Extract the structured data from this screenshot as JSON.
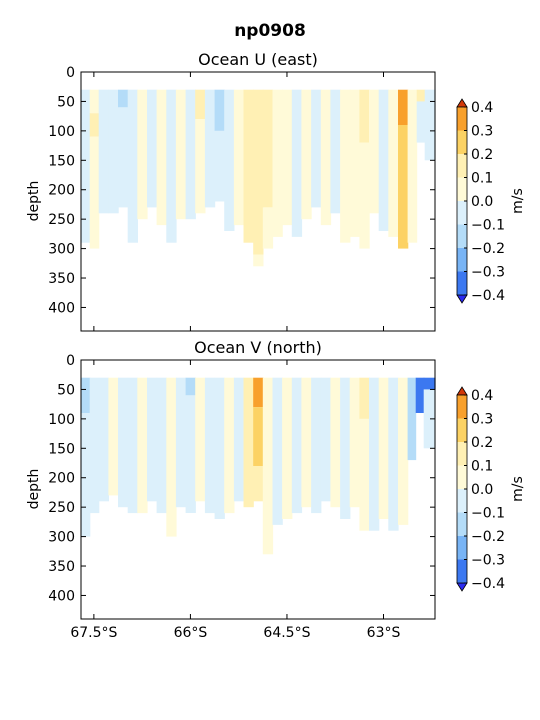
{
  "suptitle": "np0908",
  "colorbar": {
    "label": "m/s",
    "levels": [
      -0.4,
      -0.3,
      -0.2,
      -0.1,
      0.0,
      0.1,
      0.2,
      0.3,
      0.4
    ],
    "tick_labels": [
      "−0.4",
      "−0.3",
      "−0.2",
      "−0.1",
      "0.0",
      "0.1",
      "0.2",
      "0.3",
      "0.4"
    ],
    "colors": [
      "#2a2af0",
      "#3c78f0",
      "#78b4f5",
      "#b4dcf8",
      "#dcf0fb",
      "#fffad8",
      "#fff0b4",
      "#fcd264",
      "#f8a02c",
      "#ee5a1a",
      "#d23808"
    ]
  },
  "axes": {
    "ylabel": "depth",
    "y_ticks": [
      "0",
      "50",
      "100",
      "150",
      "200",
      "250",
      "300",
      "350",
      "400"
    ],
    "x_ticks": [
      "67.5°S",
      "66°S",
      "64.5°S",
      "63°S"
    ]
  },
  "chart_data": [
    {
      "type": "heatmap",
      "title": "Ocean U (east)",
      "ylabel": "depth",
      "xlabel": "",
      "x_range_deg_south": [
        67.7,
        62.2
      ],
      "y_range_depth": [
        0,
        440
      ],
      "y_inverted": true,
      "colorbar_label": "m/s",
      "value_range": [
        -0.4,
        0.4
      ],
      "profile_columns": [
        {
          "lat_s": 67.63,
          "top": 30,
          "bottom": 290,
          "segments": [
            [
              30,
              290,
              -0.05
            ]
          ]
        },
        {
          "lat_s": 67.5,
          "top": 30,
          "bottom": 300,
          "segments": [
            [
              30,
              70,
              0.05
            ],
            [
              70,
              110,
              0.15
            ],
            [
              110,
              300,
              0.05
            ]
          ]
        },
        {
          "lat_s": 67.35,
          "top": 30,
          "bottom": 240,
          "segments": [
            [
              30,
              240,
              -0.05
            ]
          ]
        },
        {
          "lat_s": 67.2,
          "top": 30,
          "bottom": 240,
          "segments": [
            [
              30,
              240,
              -0.05
            ]
          ]
        },
        {
          "lat_s": 67.05,
          "top": 30,
          "bottom": 230,
          "segments": [
            [
              30,
              60,
              -0.15
            ],
            [
              60,
              230,
              -0.05
            ]
          ]
        },
        {
          "lat_s": 66.9,
          "top": 30,
          "bottom": 290,
          "segments": [
            [
              30,
              290,
              -0.05
            ]
          ]
        },
        {
          "lat_s": 66.75,
          "top": 30,
          "bottom": 250,
          "segments": [
            [
              30,
              250,
              0.05
            ]
          ]
        },
        {
          "lat_s": 66.6,
          "top": 30,
          "bottom": 230,
          "segments": [
            [
              30,
              230,
              -0.05
            ]
          ]
        },
        {
          "lat_s": 66.45,
          "top": 30,
          "bottom": 260,
          "segments": [
            [
              30,
              260,
              0.05
            ]
          ]
        },
        {
          "lat_s": 66.3,
          "top": 30,
          "bottom": 290,
          "segments": [
            [
              30,
              290,
              -0.05
            ]
          ]
        },
        {
          "lat_s": 66.15,
          "top": 30,
          "bottom": 250,
          "segments": [
            [
              30,
              250,
              0.05
            ]
          ]
        },
        {
          "lat_s": 66.0,
          "top": 30,
          "bottom": 250,
          "segments": [
            [
              30,
              250,
              -0.05
            ]
          ]
        },
        {
          "lat_s": 65.85,
          "top": 30,
          "bottom": 240,
          "segments": [
            [
              30,
              80,
              0.15
            ],
            [
              80,
              240,
              0.05
            ]
          ]
        },
        {
          "lat_s": 65.7,
          "top": 30,
          "bottom": 230,
          "segments": [
            [
              30,
              230,
              -0.05
            ]
          ]
        },
        {
          "lat_s": 65.55,
          "top": 30,
          "bottom": 220,
          "segments": [
            [
              30,
              100,
              -0.15
            ],
            [
              100,
              220,
              -0.05
            ]
          ]
        },
        {
          "lat_s": 65.4,
          "top": 30,
          "bottom": 270,
          "segments": [
            [
              30,
              270,
              -0.05
            ]
          ]
        },
        {
          "lat_s": 65.25,
          "top": 30,
          "bottom": 260,
          "segments": [
            [
              30,
              260,
              0.05
            ]
          ]
        },
        {
          "lat_s": 65.1,
          "top": 30,
          "bottom": 290,
          "segments": [
            [
              30,
              290,
              0.15
            ]
          ]
        },
        {
          "lat_s": 64.95,
          "top": 30,
          "bottom": 330,
          "segments": [
            [
              30,
              310,
              0.15
            ],
            [
              310,
              330,
              0.05
            ]
          ]
        },
        {
          "lat_s": 64.8,
          "top": 30,
          "bottom": 300,
          "segments": [
            [
              30,
              230,
              0.15
            ],
            [
              230,
              300,
              0.05
            ]
          ]
        },
        {
          "lat_s": 64.65,
          "top": 30,
          "bottom": 280,
          "segments": [
            [
              30,
              280,
              0.05
            ]
          ]
        },
        {
          "lat_s": 64.5,
          "top": 30,
          "bottom": 260,
          "segments": [
            [
              30,
              260,
              0.05
            ]
          ]
        },
        {
          "lat_s": 64.35,
          "top": 30,
          "bottom": 280,
          "segments": [
            [
              30,
              280,
              -0.05
            ]
          ]
        },
        {
          "lat_s": 64.2,
          "top": 30,
          "bottom": 250,
          "segments": [
            [
              30,
              250,
              0.05
            ]
          ]
        },
        {
          "lat_s": 64.05,
          "top": 30,
          "bottom": 230,
          "segments": [
            [
              30,
              230,
              -0.05
            ]
          ]
        },
        {
          "lat_s": 63.9,
          "top": 30,
          "bottom": 260,
          "segments": [
            [
              30,
              260,
              0.05
            ]
          ]
        },
        {
          "lat_s": 63.75,
          "top": 30,
          "bottom": 240,
          "segments": [
            [
              30,
              240,
              -0.05
            ]
          ]
        },
        {
          "lat_s": 63.6,
          "top": 30,
          "bottom": 290,
          "segments": [
            [
              30,
              290,
              0.05
            ]
          ]
        },
        {
          "lat_s": 63.45,
          "top": 30,
          "bottom": 280,
          "segments": [
            [
              30,
              280,
              0.05
            ]
          ]
        },
        {
          "lat_s": 63.3,
          "top": 30,
          "bottom": 300,
          "segments": [
            [
              30,
              120,
              0.15
            ],
            [
              120,
              300,
              0.05
            ]
          ]
        },
        {
          "lat_s": 63.15,
          "top": 30,
          "bottom": 240,
          "segments": [
            [
              30,
              240,
              0.05
            ]
          ]
        },
        {
          "lat_s": 63.0,
          "top": 30,
          "bottom": 270,
          "segments": [
            [
              30,
              270,
              -0.05
            ]
          ]
        },
        {
          "lat_s": 62.85,
          "top": 30,
          "bottom": 280,
          "segments": [
            [
              30,
              280,
              0.05
            ]
          ]
        },
        {
          "lat_s": 62.7,
          "top": 30,
          "bottom": 300,
          "segments": [
            [
              30,
              90,
              0.35
            ],
            [
              90,
              300,
              0.25
            ]
          ]
        },
        {
          "lat_s": 62.55,
          "top": 30,
          "bottom": 290,
          "segments": [
            [
              30,
              290,
              0.05
            ]
          ]
        },
        {
          "lat_s": 62.42,
          "top": 30,
          "bottom": 120,
          "segments": [
            [
              30,
              50,
              0.15
            ],
            [
              50,
              120,
              -0.05
            ]
          ]
        },
        {
          "lat_s": 62.3,
          "top": 30,
          "bottom": 150,
          "segments": [
            [
              30,
              150,
              -0.05
            ]
          ]
        }
      ]
    },
    {
      "type": "heatmap",
      "title": "Ocean V (north)",
      "ylabel": "depth",
      "xlabel": "",
      "x_range_deg_south": [
        67.7,
        62.2
      ],
      "y_range_depth": [
        0,
        440
      ],
      "y_inverted": true,
      "colorbar_label": "m/s",
      "value_range": [
        -0.4,
        0.4
      ],
      "profile_columns": [
        {
          "lat_s": 67.63,
          "top": 30,
          "bottom": 300,
          "segments": [
            [
              30,
              90,
              -0.15
            ],
            [
              90,
              300,
              -0.05
            ]
          ]
        },
        {
          "lat_s": 67.5,
          "top": 30,
          "bottom": 260,
          "segments": [
            [
              30,
              260,
              -0.05
            ]
          ]
        },
        {
          "lat_s": 67.35,
          "top": 30,
          "bottom": 240,
          "segments": [
            [
              30,
              240,
              -0.05
            ]
          ]
        },
        {
          "lat_s": 67.2,
          "top": 30,
          "bottom": 230,
          "segments": [
            [
              30,
              230,
              0.05
            ]
          ]
        },
        {
          "lat_s": 67.05,
          "top": 30,
          "bottom": 250,
          "segments": [
            [
              30,
              250,
              -0.05
            ]
          ]
        },
        {
          "lat_s": 66.9,
          "top": 30,
          "bottom": 260,
          "segments": [
            [
              30,
              260,
              -0.05
            ]
          ]
        },
        {
          "lat_s": 66.75,
          "top": 30,
          "bottom": 260,
          "segments": [
            [
              30,
              260,
              0.05
            ]
          ]
        },
        {
          "lat_s": 66.6,
          "top": 30,
          "bottom": 240,
          "segments": [
            [
              30,
              240,
              -0.05
            ]
          ]
        },
        {
          "lat_s": 66.45,
          "top": 30,
          "bottom": 260,
          "segments": [
            [
              30,
              260,
              -0.05
            ]
          ]
        },
        {
          "lat_s": 66.3,
          "top": 30,
          "bottom": 300,
          "segments": [
            [
              30,
              300,
              0.05
            ]
          ]
        },
        {
          "lat_s": 66.15,
          "top": 30,
          "bottom": 250,
          "segments": [
            [
              30,
              250,
              -0.05
            ]
          ]
        },
        {
          "lat_s": 66.0,
          "top": 30,
          "bottom": 260,
          "segments": [
            [
              30,
              60,
              -0.15
            ],
            [
              60,
              260,
              -0.05
            ]
          ]
        },
        {
          "lat_s": 65.85,
          "top": 30,
          "bottom": 240,
          "segments": [
            [
              30,
              240,
              0.05
            ]
          ]
        },
        {
          "lat_s": 65.7,
          "top": 30,
          "bottom": 260,
          "segments": [
            [
              30,
              260,
              -0.05
            ]
          ]
        },
        {
          "lat_s": 65.55,
          "top": 30,
          "bottom": 270,
          "segments": [
            [
              30,
              270,
              -0.05
            ]
          ]
        },
        {
          "lat_s": 65.4,
          "top": 30,
          "bottom": 260,
          "segments": [
            [
              30,
              260,
              0.05
            ]
          ]
        },
        {
          "lat_s": 65.25,
          "top": 30,
          "bottom": 240,
          "segments": [
            [
              30,
              240,
              -0.05
            ]
          ]
        },
        {
          "lat_s": 65.1,
          "top": 30,
          "bottom": 250,
          "segments": [
            [
              30,
              250,
              0.15
            ]
          ]
        },
        {
          "lat_s": 64.95,
          "top": 30,
          "bottom": 240,
          "segments": [
            [
              30,
              80,
              0.35
            ],
            [
              80,
              180,
              0.25
            ],
            [
              180,
              240,
              0.15
            ]
          ]
        },
        {
          "lat_s": 64.8,
          "top": 30,
          "bottom": 330,
          "segments": [
            [
              30,
              330,
              0.05
            ]
          ]
        },
        {
          "lat_s": 64.65,
          "top": 30,
          "bottom": 280,
          "segments": [
            [
              30,
              280,
              -0.05
            ]
          ]
        },
        {
          "lat_s": 64.5,
          "top": 30,
          "bottom": 270,
          "segments": [
            [
              30,
              270,
              0.05
            ]
          ]
        },
        {
          "lat_s": 64.35,
          "top": 30,
          "bottom": 260,
          "segments": [
            [
              30,
              260,
              -0.05
            ]
          ]
        },
        {
          "lat_s": 64.2,
          "top": 30,
          "bottom": 250,
          "segments": [
            [
              30,
              250,
              0.05
            ]
          ]
        },
        {
          "lat_s": 64.05,
          "top": 30,
          "bottom": 260,
          "segments": [
            [
              30,
              260,
              -0.05
            ]
          ]
        },
        {
          "lat_s": 63.9,
          "top": 30,
          "bottom": 240,
          "segments": [
            [
              30,
              240,
              -0.05
            ]
          ]
        },
        {
          "lat_s": 63.75,
          "top": 30,
          "bottom": 250,
          "segments": [
            [
              30,
              250,
              0.05
            ]
          ]
        },
        {
          "lat_s": 63.6,
          "top": 30,
          "bottom": 270,
          "segments": [
            [
              30,
              270,
              -0.05
            ]
          ]
        },
        {
          "lat_s": 63.45,
          "top": 30,
          "bottom": 250,
          "segments": [
            [
              30,
              250,
              0.05
            ]
          ]
        },
        {
          "lat_s": 63.3,
          "top": 30,
          "bottom": 290,
          "segments": [
            [
              30,
              100,
              0.15
            ],
            [
              100,
              290,
              0.05
            ]
          ]
        },
        {
          "lat_s": 63.15,
          "top": 30,
          "bottom": 290,
          "segments": [
            [
              30,
              290,
              -0.05
            ]
          ]
        },
        {
          "lat_s": 63.0,
          "top": 30,
          "bottom": 270,
          "segments": [
            [
              30,
              270,
              0.05
            ]
          ]
        },
        {
          "lat_s": 62.85,
          "top": 30,
          "bottom": 290,
          "segments": [
            [
              30,
              290,
              -0.05
            ]
          ]
        },
        {
          "lat_s": 62.7,
          "top": 30,
          "bottom": 280,
          "segments": [
            [
              30,
              280,
              0.05
            ]
          ]
        },
        {
          "lat_s": 62.55,
          "top": 30,
          "bottom": 170,
          "segments": [
            [
              30,
              170,
              -0.15
            ]
          ]
        },
        {
          "lat_s": 62.45,
          "top": 30,
          "bottom": 90,
          "segments": [
            [
              30,
              90,
              -0.35
            ]
          ]
        },
        {
          "lat_s": 62.3,
          "top": 30,
          "bottom": 150,
          "segments": [
            [
              30,
              50,
              -0.35
            ],
            [
              50,
              150,
              -0.05
            ]
          ]
        }
      ]
    }
  ]
}
